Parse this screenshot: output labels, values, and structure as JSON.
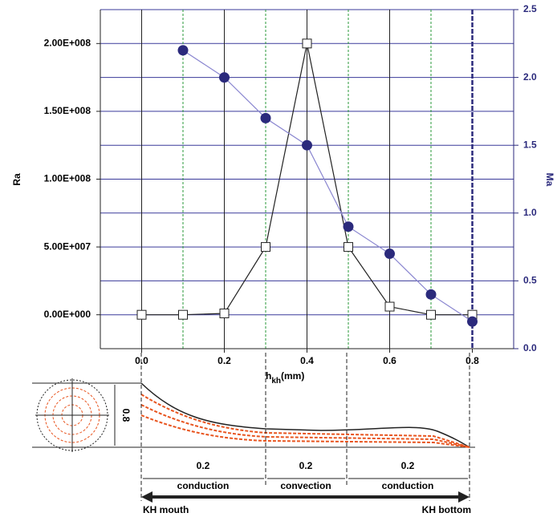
{
  "chart_data": {
    "type": "line",
    "x_label": {
      "main": "h",
      "sub": "kh",
      "unit": "(mm)"
    },
    "y_label": "Ra",
    "y2_label": "Ma",
    "x": [
      0,
      0.1,
      0.2,
      0.3,
      0.4,
      0.5,
      0.6,
      0.7,
      0.8
    ],
    "series": [
      {
        "name": "Ra",
        "axis": "y",
        "color": "#222222",
        "marker": "square",
        "values": [
          0,
          0,
          1000000,
          50000000,
          200000000,
          50000000,
          6000000,
          0,
          0
        ]
      },
      {
        "name": "Ma",
        "axis": "y2",
        "color": "#2b2a7c",
        "marker": "circle",
        "values": [
          null,
          2.2,
          2.0,
          1.7,
          1.5,
          0.9,
          0.7,
          0.4,
          0.2
        ]
      }
    ],
    "xlim": [
      -0.1,
      0.9
    ],
    "xticks": [
      {
        "value": 0,
        "label": "0.0"
      },
      0.2,
      0.4,
      0.6,
      0.8
    ],
    "ylim": [
      -25000000,
      225000000
    ],
    "yticks": [
      {
        "value": 0,
        "label": "0.00E+000"
      },
      {
        "value": 50000000,
        "label": "5.00E+007"
      },
      {
        "value": 100000000,
        "label": "1.00E+008"
      },
      {
        "value": 150000000,
        "label": "1.50E+008"
      },
      {
        "value": 200000000,
        "label": "2.00E+008"
      }
    ],
    "y2lim": [
      0,
      2.5
    ],
    "y2ticks": [
      {
        "value": 0,
        "label": "0.0"
      },
      0.5,
      {
        "value": 1,
        "label": "1.0"
      },
      1.5,
      {
        "value": 2,
        "label": "2.0"
      },
      2.5
    ],
    "grid": true
  },
  "diagram": {
    "height_label": "0.8",
    "segments": [
      {
        "length": "0.2",
        "mode": "conduction"
      },
      {
        "length": "0.2",
        "mode": "convection"
      },
      {
        "length": "0.2",
        "mode": "conduction"
      }
    ],
    "start_label": "KH mouth",
    "end_label": "KH bottom"
  }
}
